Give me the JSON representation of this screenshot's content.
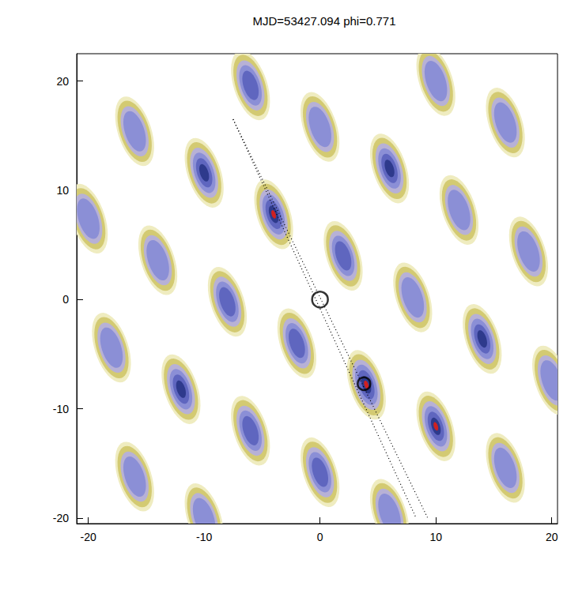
{
  "chart_data": {
    "type": "heatmap",
    "title": "MJD=53427.094 phi=0.771",
    "xlim": [
      -21,
      20.5
    ],
    "ylim": [
      -20.5,
      22.5
    ],
    "xticks": [
      -20,
      -10,
      0,
      10,
      20
    ],
    "yticks": [
      -20,
      -10,
      0,
      10,
      20
    ],
    "grid": false,
    "blobs": {
      "x": [
        10,
        16,
        -6,
        0,
        6,
        12,
        18,
        -16,
        -10,
        -4,
        2,
        8,
        14,
        20,
        -20,
        -14,
        -8,
        -2,
        4,
        10,
        16,
        -18,
        -12,
        -6,
        0,
        6,
        -16,
        -10
      ],
      "y": [
        20,
        16.2,
        19.6,
        15.8,
        12,
        8.2,
        4.4,
        15.4,
        11.6,
        7.8,
        4,
        0.2,
        -3.6,
        -7.4,
        7.4,
        3.6,
        -0.2,
        -4,
        -7.8,
        -11.6,
        -15.4,
        -4.4,
        -8.2,
        -12,
        -15.8,
        -19.6,
        -16.2,
        -20
      ],
      "values": [
        0.5,
        0.55,
        0.75,
        0.6,
        0.8,
        0.55,
        0.65,
        0.6,
        0.85,
        1.0,
        0.7,
        0.6,
        0.8,
        0.6,
        0.6,
        0.5,
        0.7,
        0.75,
        1.0,
        0.95,
        0.5,
        0.55,
        0.8,
        0.75,
        0.7,
        0.6,
        0.5,
        0.6
      ]
    },
    "lines": [
      {
        "x": [
          -7.5,
          8.3
        ],
        "y": [
          16.5,
          -20
        ],
        "line_style": "dotted"
      },
      {
        "x": [
          -7.5,
          9.3
        ],
        "y": [
          16.5,
          -20
        ],
        "line_style": "dotted"
      }
    ],
    "markers": {
      "x": [
        0,
        3.8
      ],
      "y": [
        0,
        -7.7
      ],
      "marker": "circle"
    }
  }
}
